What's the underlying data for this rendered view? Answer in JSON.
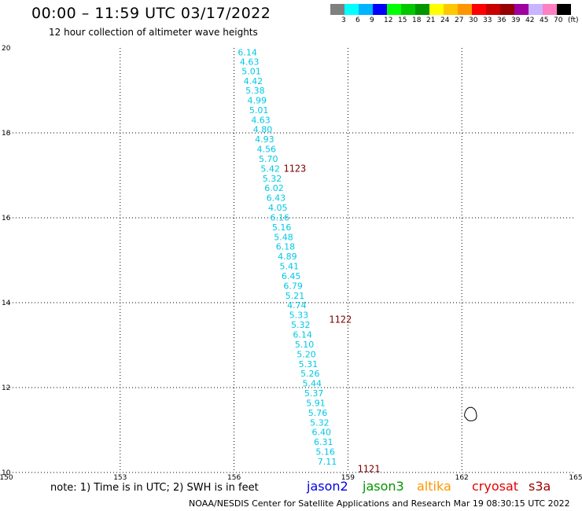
{
  "header": {
    "title": "00:00 – 11:59 UTC 03/17/2022",
    "subtitle": "12 hour collection of altimeter wave heights"
  },
  "color_scale": {
    "colors": [
      "#808080",
      "#00ffff",
      "#00b4ff",
      "#0000ff",
      "#00ff00",
      "#00c800",
      "#009600",
      "#ffff00",
      "#ffc800",
      "#ff9600",
      "#ff0000",
      "#c80000",
      "#960000",
      "#a000a0",
      "#c8b4ff",
      "#ff80c0",
      "#000000"
    ],
    "labels": [
      "3",
      "6",
      "9",
      "12",
      "15",
      "18",
      "21",
      "24",
      "27",
      "30",
      "33",
      "36",
      "39",
      "42",
      "45",
      "70",
      "(ft)"
    ]
  },
  "axes": {
    "x_ticks": [
      "150",
      "153",
      "156",
      "159",
      "162",
      "165"
    ],
    "y_ticks": [
      "20",
      "18",
      "16",
      "14",
      "12",
      "10"
    ]
  },
  "chart_data": {
    "type": "scatter",
    "xlim": [
      150,
      165
    ],
    "ylim": [
      10,
      20
    ],
    "grid": true,
    "points": [
      {
        "lon": 156.1,
        "lat": 19.9,
        "v": "6.14"
      },
      {
        "lon": 156.15,
        "lat": 19.68,
        "v": "4.63"
      },
      {
        "lon": 156.2,
        "lat": 19.45,
        "v": "5.01"
      },
      {
        "lon": 156.25,
        "lat": 19.22,
        "v": "4.42"
      },
      {
        "lon": 156.3,
        "lat": 19.0,
        "v": "5.38"
      },
      {
        "lon": 156.35,
        "lat": 18.77,
        "v": "4.99"
      },
      {
        "lon": 156.4,
        "lat": 18.54,
        "v": "5.01"
      },
      {
        "lon": 156.45,
        "lat": 18.31,
        "v": "4.63"
      },
      {
        "lon": 156.5,
        "lat": 18.08,
        "v": "4.80"
      },
      {
        "lon": 156.55,
        "lat": 17.85,
        "v": "4.93"
      },
      {
        "lon": 156.6,
        "lat": 17.62,
        "v": "4.56"
      },
      {
        "lon": 156.65,
        "lat": 17.39,
        "v": "5.70"
      },
      {
        "lon": 156.7,
        "lat": 17.16,
        "v": "5.42"
      },
      {
        "lon": 156.75,
        "lat": 16.93,
        "v": "5.32"
      },
      {
        "lon": 156.8,
        "lat": 16.7,
        "v": "6.02"
      },
      {
        "lon": 156.85,
        "lat": 16.47,
        "v": "6.43"
      },
      {
        "lon": 156.9,
        "lat": 16.24,
        "v": "4.05"
      },
      {
        "lon": 156.95,
        "lat": 16.01,
        "v": "6.16"
      },
      {
        "lon": 157.0,
        "lat": 15.78,
        "v": "5.16"
      },
      {
        "lon": 157.05,
        "lat": 15.55,
        "v": "5.48"
      },
      {
        "lon": 157.1,
        "lat": 15.32,
        "v": "6.18"
      },
      {
        "lon": 157.15,
        "lat": 15.09,
        "v": "4.89"
      },
      {
        "lon": 157.2,
        "lat": 14.86,
        "v": "5.41"
      },
      {
        "lon": 157.25,
        "lat": 14.63,
        "v": "6.45"
      },
      {
        "lon": 157.3,
        "lat": 14.4,
        "v": "6.79"
      },
      {
        "lon": 157.35,
        "lat": 14.17,
        "v": "5.21"
      },
      {
        "lon": 157.4,
        "lat": 13.94,
        "v": "4.74"
      },
      {
        "lon": 157.45,
        "lat": 13.71,
        "v": "5.33"
      },
      {
        "lon": 157.5,
        "lat": 13.48,
        "v": "5.32"
      },
      {
        "lon": 157.55,
        "lat": 13.25,
        "v": "6.14"
      },
      {
        "lon": 157.6,
        "lat": 13.02,
        "v": "5.10"
      },
      {
        "lon": 157.65,
        "lat": 12.79,
        "v": "5.20"
      },
      {
        "lon": 157.7,
        "lat": 12.56,
        "v": "5.31"
      },
      {
        "lon": 157.75,
        "lat": 12.33,
        "v": "5.26"
      },
      {
        "lon": 157.8,
        "lat": 12.1,
        "v": "5.44"
      },
      {
        "lon": 157.85,
        "lat": 11.87,
        "v": "5.37"
      },
      {
        "lon": 157.9,
        "lat": 11.64,
        "v": "5.91"
      },
      {
        "lon": 157.95,
        "lat": 11.41,
        "v": "5.76"
      },
      {
        "lon": 158.0,
        "lat": 11.18,
        "v": "5.32"
      },
      {
        "lon": 158.05,
        "lat": 10.95,
        "v": "6.40"
      },
      {
        "lon": 158.1,
        "lat": 10.72,
        "v": "6.31"
      },
      {
        "lon": 158.15,
        "lat": 10.49,
        "v": "5.16"
      },
      {
        "lon": 158.2,
        "lat": 10.26,
        "v": "7.11"
      }
    ],
    "pass_labels": [
      {
        "lon": 157.3,
        "lat": 17.16,
        "text": "1123"
      },
      {
        "lon": 158.5,
        "lat": 13.6,
        "text": "1122"
      },
      {
        "lon": 159.25,
        "lat": 10.08,
        "text": "1121"
      }
    ],
    "island": {
      "lon": 162.2,
      "lat": 11.35
    }
  },
  "footer": {
    "note": "note: 1) Time is in UTC; 2) SWH is in feet",
    "satellites": [
      {
        "name": "jason2",
        "color": "#0000e6"
      },
      {
        "name": "jason3",
        "color": "#009600"
      },
      {
        "name": "altika",
        "color": "#ff9600"
      },
      {
        "name": "cryosat",
        "color": "#e60000"
      },
      {
        "name": "s3a",
        "color": "#a00000"
      }
    ],
    "credit": "NOAA/NESDIS Center for Satellite Applications and Research    Mar 19 08:30:15 UTC 2022"
  }
}
